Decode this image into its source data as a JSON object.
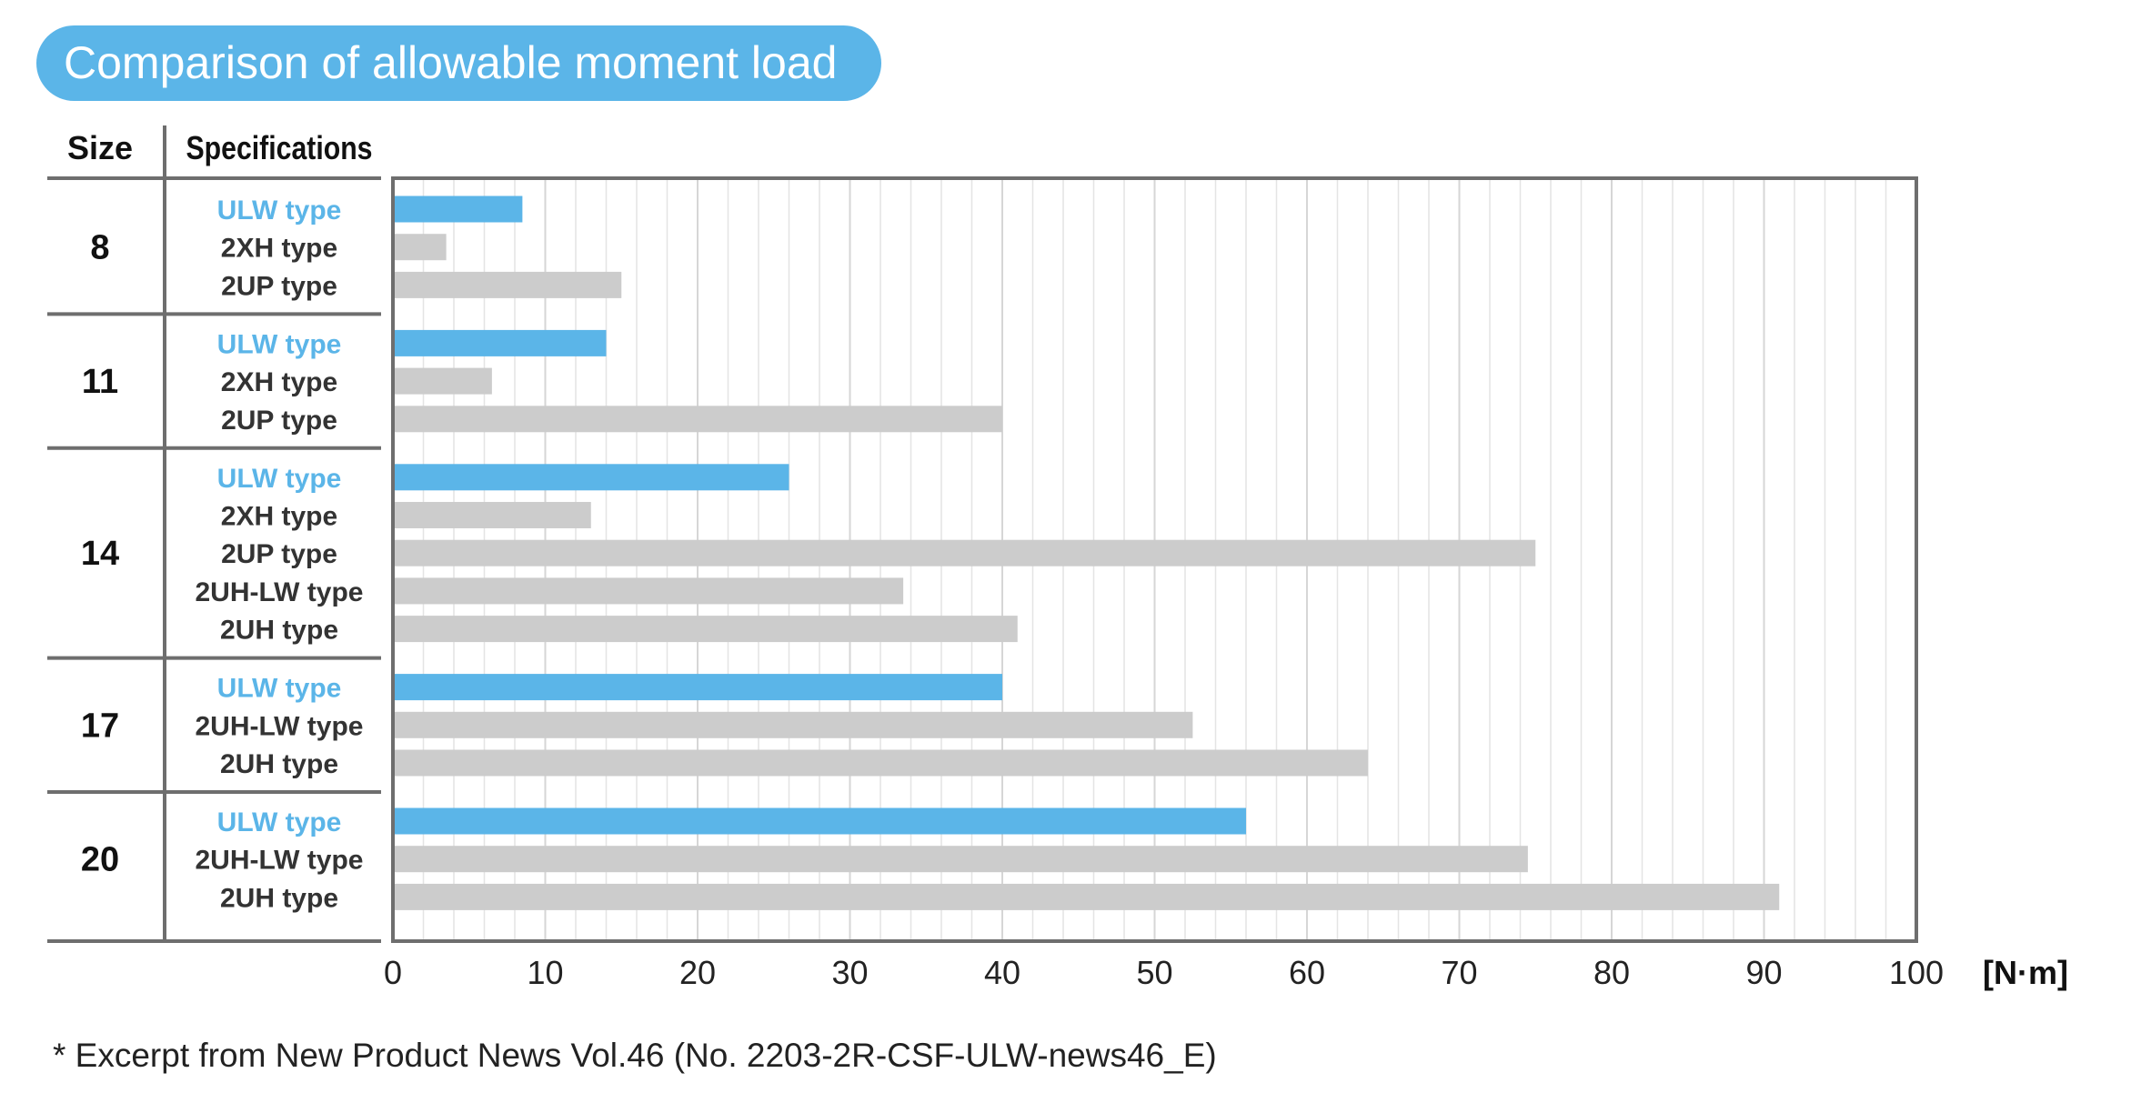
{
  "title": "Comparison of allowable moment load",
  "footnote": "* Excerpt from New Product News Vol.46 (No. 2203-2R-CSF-ULW-news46_E)",
  "colors": {
    "highlight": "#5bb5e8",
    "other": "#cccccc",
    "frame": "#6e6e6e",
    "grid": "#e4e4e4"
  },
  "chart_data": {
    "type": "bar",
    "orientation": "horizontal",
    "title": "Comparison of allowable moment load",
    "header_size": "Size",
    "header_spec": "Specifications",
    "unit": "[N·m]",
    "xlim": [
      0,
      100
    ],
    "xticks": [
      0,
      10,
      20,
      30,
      40,
      50,
      60,
      70,
      80,
      90,
      100
    ],
    "grid": true,
    "groups": [
      {
        "size": "8",
        "bars": [
          {
            "label": "ULW type",
            "value": 8.5,
            "highlight": true
          },
          {
            "label": "2XH type",
            "value": 3.5
          },
          {
            "label": "2UP type",
            "value": 15
          }
        ]
      },
      {
        "size": "11",
        "bars": [
          {
            "label": "ULW type",
            "value": 14,
            "highlight": true
          },
          {
            "label": "2XH type",
            "value": 6.5
          },
          {
            "label": "2UP type",
            "value": 40
          }
        ]
      },
      {
        "size": "14",
        "bars": [
          {
            "label": "ULW type",
            "value": 26,
            "highlight": true
          },
          {
            "label": "2XH type",
            "value": 13
          },
          {
            "label": "2UP type",
            "value": 75
          },
          {
            "label": "2UH-LW type",
            "value": 33.5
          },
          {
            "label": "2UH type",
            "value": 41
          }
        ]
      },
      {
        "size": "17",
        "bars": [
          {
            "label": "ULW type",
            "value": 40,
            "highlight": true
          },
          {
            "label": "2UH-LW type",
            "value": 52.5
          },
          {
            "label": "2UH type",
            "value": 64
          }
        ]
      },
      {
        "size": "20",
        "bars": [
          {
            "label": "ULW type",
            "value": 56,
            "highlight": true
          },
          {
            "label": "2UH-LW type",
            "value": 74.5
          },
          {
            "label": "2UH type",
            "value": 91
          }
        ]
      }
    ]
  }
}
